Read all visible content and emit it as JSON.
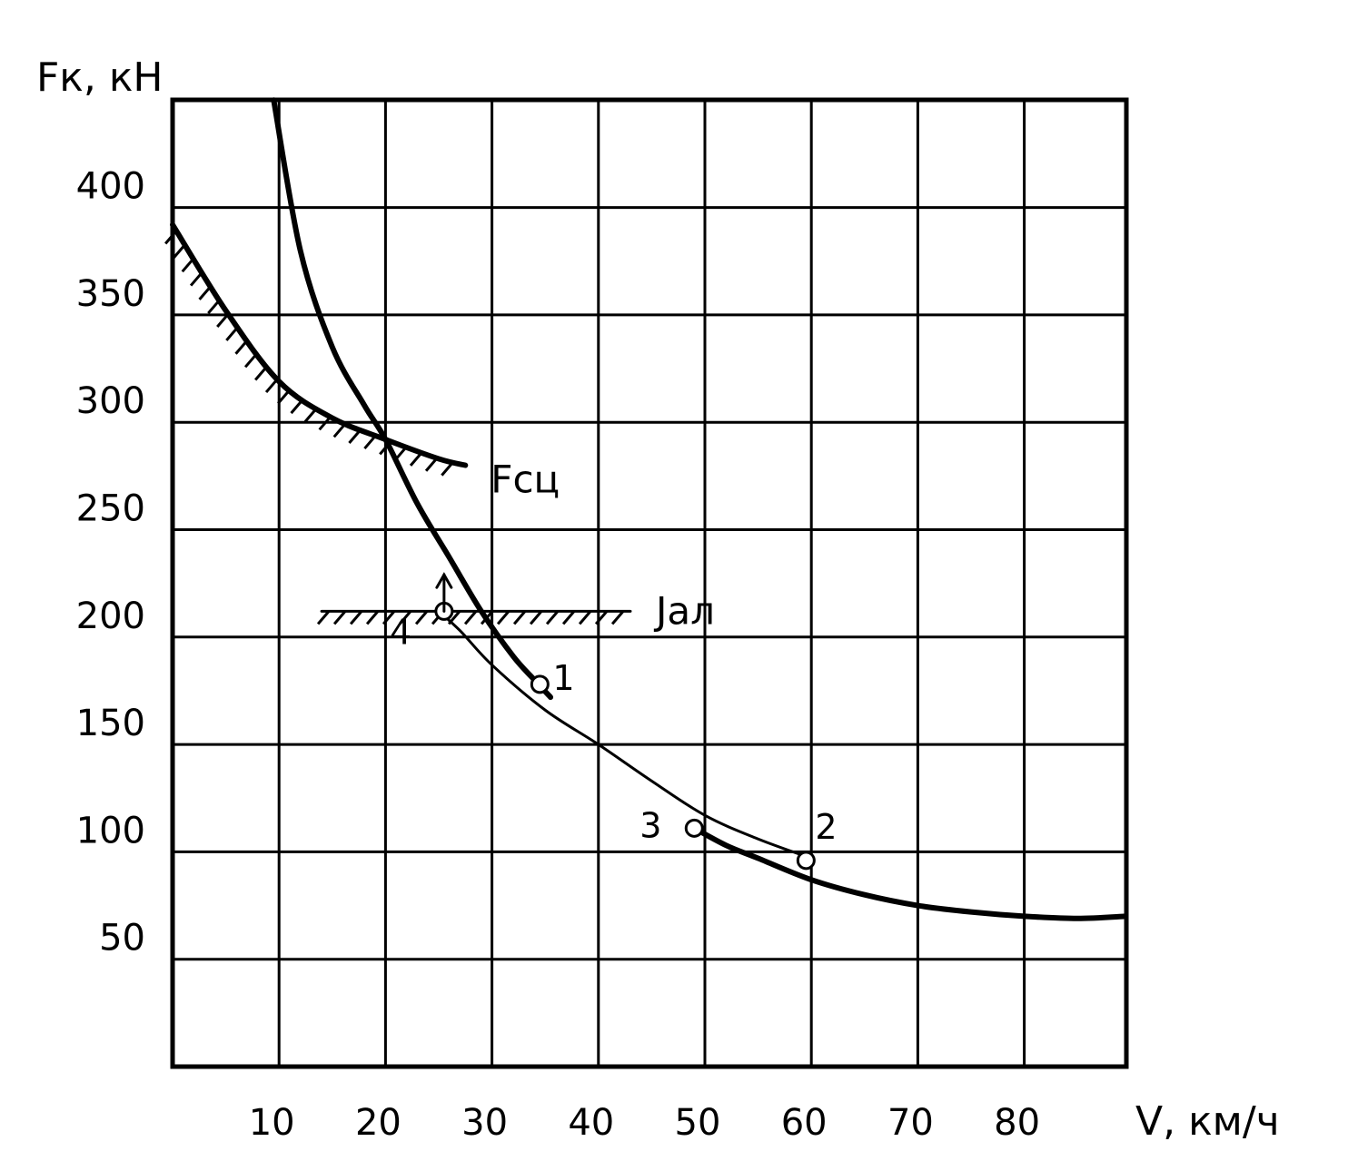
{
  "chart_data": {
    "type": "line",
    "xlabel": "V, км/ч",
    "ylabel": "Fк, кН",
    "xlim": [
      0,
      90
    ],
    "ylim": [
      0,
      450
    ],
    "x_ticks": [
      10,
      20,
      30,
      40,
      50,
      60,
      70,
      80
    ],
    "y_ticks": [
      50,
      100,
      150,
      200,
      250,
      300,
      350,
      400
    ],
    "grid": true,
    "series": [
      {
        "name": "Fсц",
        "values": [
          [
            0,
            392
          ],
          [
            5,
            352
          ],
          [
            10,
            319
          ],
          [
            15,
            302
          ],
          [
            20,
            292
          ],
          [
            25,
            283
          ],
          [
            27.5,
            280
          ]
        ],
        "hatched": true
      },
      {
        "name": "",
        "values": [
          [
            9.5,
            450
          ],
          [
            12,
            380
          ],
          [
            15,
            335
          ],
          [
            18,
            308
          ],
          [
            20,
            292
          ],
          [
            23,
            262
          ],
          [
            26,
            237
          ],
          [
            29,
            212
          ],
          [
            32,
            191
          ],
          [
            34,
            180
          ],
          [
            35.5,
            172
          ]
        ]
      },
      {
        "name": "",
        "values": [
          [
            25,
            212
          ],
          [
            27,
            203
          ],
          [
            30,
            187
          ],
          [
            35,
            166
          ],
          [
            40,
            150
          ],
          [
            45,
            133
          ],
          [
            50,
            117
          ],
          [
            55,
            106
          ],
          [
            60,
            97
          ]
        ]
      },
      {
        "name": "",
        "values": [
          [
            49,
            111
          ],
          [
            52,
            103
          ],
          [
            55,
            97
          ],
          [
            60,
            87
          ],
          [
            65,
            80
          ],
          [
            70,
            75
          ],
          [
            75,
            72
          ],
          [
            80,
            70
          ],
          [
            85,
            69
          ],
          [
            89.5,
            70
          ]
        ]
      },
      {
        "name": "Jал",
        "values": [
          [
            14,
            212
          ],
          [
            43,
            212
          ]
        ],
        "hatched": true
      }
    ],
    "points": [
      {
        "label": "1",
        "x": 34.5,
        "y": 178
      },
      {
        "label": "2",
        "x": 59.5,
        "y": 96
      },
      {
        "label": "3",
        "x": 49,
        "y": 111
      },
      {
        "label": "4",
        "x": 25.5,
        "y": 212
      }
    ],
    "arrow": {
      "x": 25.5,
      "from": 212,
      "to": 229
    }
  }
}
